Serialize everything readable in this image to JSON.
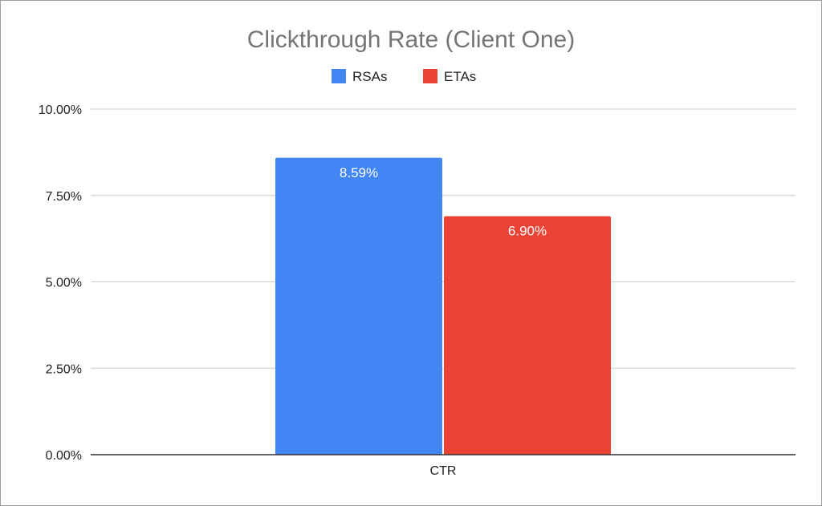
{
  "chart_data": {
    "type": "bar",
    "title": "Clickthrough Rate (Client One)",
    "xlabel": "",
    "ylabel": "",
    "categories": [
      "CTR"
    ],
    "series": [
      {
        "name": "RSAs",
        "values": [
          8.59
        ],
        "labels": [
          "8.59%"
        ],
        "color": "#4285f4"
      },
      {
        "name": "ETAs",
        "values": [
          6.9
        ],
        "labels": [
          "6.90%"
        ],
        "color": "#ea4335"
      }
    ],
    "ylim": [
      0,
      10
    ],
    "yticks": [
      0,
      2.5,
      5,
      7.5,
      10
    ],
    "ytick_labels": [
      "0.00%",
      "2.50%",
      "5.00%",
      "7.50%",
      "10.00%"
    ],
    "grid": true,
    "legend_position": "top-center"
  }
}
